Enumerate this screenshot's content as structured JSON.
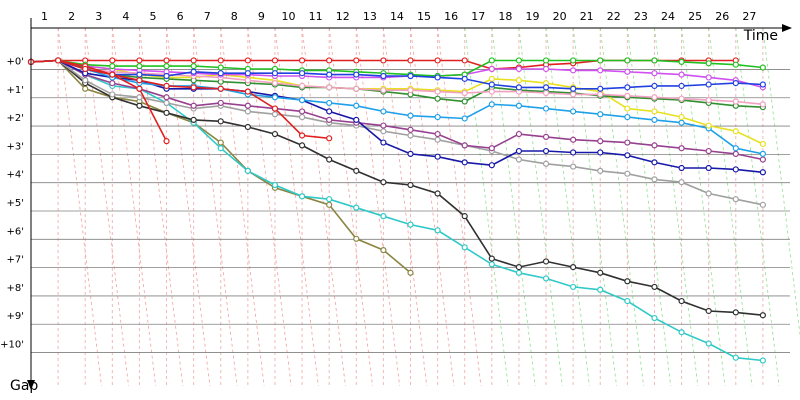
{
  "chart_data": {
    "type": "line",
    "x_label": "Time",
    "y_label": "Gap",
    "x": [
      0,
      1,
      2,
      3,
      4,
      5,
      6,
      7,
      8,
      9,
      10,
      11,
      12,
      13,
      14,
      15,
      16,
      17,
      18,
      19,
      20,
      21,
      22,
      23,
      24,
      25,
      26,
      27
    ],
    "xlim": [
      0,
      28
    ],
    "xticks": [
      1,
      2,
      3,
      4,
      5,
      6,
      7,
      8,
      9,
      10,
      11,
      12,
      13,
      14,
      15,
      16,
      17,
      18,
      19,
      20,
      21,
      22,
      23,
      24,
      25,
      26,
      27
    ],
    "ylim": [
      -1.5,
      11.5
    ],
    "yticks": [
      {
        "value": 0,
        "label": "+0'"
      },
      {
        "value": 1,
        "label": "+1'"
      },
      {
        "value": 2,
        "label": "+2'"
      },
      {
        "value": 3,
        "label": "+3'"
      },
      {
        "value": 4,
        "label": "+4'"
      },
      {
        "value": 5,
        "label": "+5'"
      },
      {
        "value": 6,
        "label": "+6'"
      },
      {
        "value": 7,
        "label": "+7'"
      },
      {
        "value": 8,
        "label": "+8'"
      },
      {
        "value": 9,
        "label": "+9'"
      },
      {
        "value": 10,
        "label": "+10'"
      }
    ],
    "grid": true,
    "series": [
      {
        "color": "#e02020",
        "values": [
          0.05,
          0,
          0,
          0,
          0,
          0,
          0,
          0,
          0,
          0,
          0,
          0,
          0,
          0,
          0,
          0,
          0,
          0.3,
          0.25,
          0.15,
          0.1,
          0,
          0,
          0,
          0,
          0,
          0,
          null
        ]
      },
      {
        "color": "#8a8540",
        "values": [
          0.05,
          0,
          1.0,
          1.3,
          1.45,
          1.85,
          2.2,
          2.9,
          3.9,
          4.5,
          4.8,
          5.1,
          6.3,
          6.7,
          7.5,
          null,
          null,
          null,
          null,
          null,
          null,
          null,
          null,
          null,
          null,
          null,
          null,
          null
        ]
      },
      {
        "color": "#30c8c8",
        "values": [
          0.05,
          0,
          0.5,
          0.9,
          1.0,
          1.5,
          2.2,
          3.1,
          3.9,
          4.4,
          4.8,
          4.9,
          5.2,
          5.5,
          5.8,
          6.0,
          6.6,
          7.2,
          7.5,
          7.7,
          8.0,
          8.1,
          8.5,
          9.1,
          9.6,
          10.0,
          10.5,
          10.6
        ]
      },
      {
        "color": "#303030",
        "values": [
          0.05,
          0,
          0.8,
          1.3,
          1.6,
          1.85,
          2.1,
          2.15,
          2.35,
          2.6,
          3.0,
          3.5,
          3.9,
          4.3,
          4.4,
          4.7,
          5.5,
          7.0,
          7.3,
          7.1,
          7.3,
          7.5,
          7.8,
          8.0,
          8.5,
          8.85,
          8.9,
          9.0
        ]
      },
      {
        "color": "#a0a0a0",
        "values": [
          0.05,
          0,
          0.7,
          1.2,
          1.3,
          1.5,
          1.7,
          1.6,
          1.8,
          1.9,
          2.0,
          2.2,
          2.3,
          2.5,
          2.65,
          2.8,
          3.0,
          3.2,
          3.5,
          3.65,
          3.75,
          3.9,
          4.0,
          4.2,
          4.3,
          4.7,
          4.9,
          5.1
        ]
      },
      {
        "color": "#984090",
        "values": [
          0.05,
          0,
          0.5,
          0.8,
          1.0,
          1.3,
          1.6,
          1.5,
          1.6,
          1.7,
          1.8,
          2.1,
          2.2,
          2.3,
          2.45,
          2.6,
          3.0,
          3.1,
          2.6,
          2.7,
          2.8,
          2.85,
          2.9,
          3.0,
          3.1,
          3.2,
          3.3,
          3.5
        ]
      },
      {
        "color": "#1818a8",
        "values": [
          0.05,
          0,
          0.45,
          0.6,
          0.7,
          1.0,
          1.0,
          1.0,
          1.1,
          1.25,
          1.4,
          1.8,
          2.1,
          2.9,
          3.3,
          3.4,
          3.6,
          3.7,
          3.2,
          3.2,
          3.25,
          3.25,
          3.35,
          3.6,
          3.8,
          3.8,
          3.85,
          3.95
        ]
      },
      {
        "color": "#20a0e8",
        "values": [
          0.05,
          0,
          0.3,
          0.6,
          0.8,
          0.9,
          0.9,
          1.0,
          1.2,
          1.3,
          1.4,
          1.5,
          1.6,
          1.8,
          1.95,
          2.0,
          2.05,
          1.55,
          1.6,
          1.7,
          1.8,
          1.9,
          2.0,
          2.1,
          2.2,
          2.4,
          3.1,
          3.3
        ]
      },
      {
        "color": "#e8e020",
        "values": [
          0.05,
          0,
          0.2,
          0.3,
          0.5,
          0.6,
          0.6,
          0.5,
          0.6,
          0.7,
          0.9,
          0.95,
          1.0,
          1.0,
          1.0,
          1.05,
          1.1,
          0.65,
          0.7,
          0.8,
          0.95,
          1.1,
          1.7,
          1.8,
          2.0,
          2.3,
          2.5,
          2.95
        ]
      },
      {
        "color": "#309030",
        "values": [
          0.05,
          0,
          0.25,
          0.5,
          0.6,
          0.65,
          0.7,
          0.75,
          0.8,
          0.85,
          0.95,
          0.95,
          1.0,
          1.1,
          1.2,
          1.35,
          1.45,
          0.95,
          1.05,
          1.1,
          1.15,
          1.25,
          1.3,
          1.35,
          1.4,
          1.5,
          1.6,
          1.65
        ]
      },
      {
        "color": "#f0a0c0",
        "values": [
          0.05,
          0,
          0.3,
          0.4,
          0.45,
          0.5,
          0.55,
          0.6,
          0.7,
          0.8,
          0.9,
          0.95,
          1.0,
          1.05,
          1.05,
          1.1,
          1.15,
          1.1,
          1.1,
          1.15,
          1.2,
          1.2,
          1.25,
          1.3,
          1.35,
          1.4,
          1.45,
          1.55
        ]
      },
      {
        "color": "#d050f0",
        "values": [
          0.05,
          0,
          0.2,
          0.3,
          0.35,
          0.4,
          0.45,
          0.5,
          0.5,
          0.55,
          0.55,
          0.6,
          0.6,
          0.6,
          0.55,
          0.55,
          0.5,
          0.3,
          0.3,
          0.3,
          0.35,
          0.35,
          0.4,
          0.45,
          0.5,
          0.6,
          0.7,
          0.95
        ]
      },
      {
        "color": "#20c020",
        "values": [
          0.05,
          0,
          0.15,
          0.2,
          0.2,
          0.2,
          0.2,
          0.25,
          0.3,
          0.3,
          0.35,
          0.35,
          0.4,
          0.45,
          0.5,
          0.55,
          0.5,
          0,
          0,
          0,
          0,
          0,
          0,
          0,
          0.05,
          0.1,
          0.15,
          0.25
        ]
      },
      {
        "color": "#2040e0",
        "values": [
          0.05,
          0,
          0.3,
          0.5,
          0.5,
          0.55,
          0.4,
          0.45,
          0.45,
          0.45,
          0.45,
          0.5,
          0.5,
          0.55,
          0.55,
          0.6,
          0.65,
          0.85,
          0.95,
          0.95,
          1.0,
          1.0,
          0.95,
          0.9,
          0.9,
          0.85,
          0.8,
          0.85
        ]
      },
      {
        "color": "#e02020",
        "values": [
          0.05,
          0,
          0.2,
          0.5,
          1.0,
          2.85,
          null,
          null,
          null,
          null,
          null,
          null,
          null,
          null,
          null,
          null,
          null,
          null,
          null,
          null,
          null,
          null,
          null,
          null,
          null,
          null,
          null,
          null
        ]
      },
      {
        "color": "#e02020",
        "values": [
          0.05,
          0,
          0.3,
          0.5,
          0.7,
          0.9,
          0.95,
          1.0,
          1.1,
          1.7,
          2.65,
          2.75,
          null,
          null,
          null,
          null,
          null,
          null,
          null,
          null,
          null,
          null,
          null,
          null,
          null,
          null,
          null,
          null
        ]
      }
    ]
  }
}
